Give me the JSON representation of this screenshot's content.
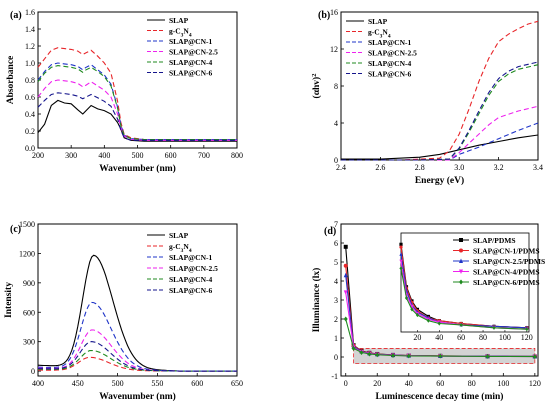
{
  "chart_data": [
    {
      "panel": "(a)",
      "type": "line",
      "xlabel": "Wavenumber (nm)",
      "ylabel": "Absorbance",
      "xlim": [
        200,
        800
      ],
      "ylim": [
        0,
        1.6
      ],
      "xticks": [
        "200",
        "300",
        "400",
        "500",
        "600",
        "700",
        "800"
      ],
      "yticks": [
        "0.0",
        "0.2",
        "0.4",
        "0.6",
        "0.8",
        "1.0",
        "1.2",
        "1.4",
        "1.6"
      ],
      "legend_position": "top-right",
      "series": [
        {
          "name": "SLAP",
          "color": "#000000",
          "style": "solid",
          "x": [
            200,
            220,
            240,
            260,
            280,
            300,
            320,
            335,
            345,
            360,
            380,
            400,
            420,
            440,
            450,
            460,
            480,
            520,
            600,
            700,
            800
          ],
          "y": [
            0.18,
            0.28,
            0.5,
            0.56,
            0.53,
            0.52,
            0.45,
            0.4,
            0.44,
            0.5,
            0.46,
            0.44,
            0.4,
            0.3,
            0.22,
            0.12,
            0.09,
            0.08,
            0.08,
            0.08,
            0.08
          ]
        },
        {
          "name": "g-C3N4",
          "color": "#e8262a",
          "style": "dashed",
          "x": [
            200,
            220,
            240,
            260,
            280,
            300,
            320,
            335,
            345,
            360,
            380,
            400,
            420,
            440,
            450,
            460,
            480,
            520,
            600,
            700,
            800
          ],
          "y": [
            0.95,
            1.05,
            1.15,
            1.18,
            1.17,
            1.16,
            1.14,
            1.1,
            1.12,
            1.15,
            1.08,
            1.0,
            0.88,
            0.55,
            0.3,
            0.16,
            0.12,
            0.1,
            0.1,
            0.1,
            0.1
          ]
        },
        {
          "name": "SLAP@CN-1",
          "color": "#1f34c8",
          "style": "dashed",
          "x": [
            200,
            220,
            240,
            260,
            280,
            300,
            320,
            335,
            345,
            360,
            380,
            400,
            420,
            440,
            450,
            460,
            480,
            520,
            600,
            700,
            800
          ],
          "y": [
            0.8,
            0.9,
            0.98,
            1.0,
            0.99,
            0.98,
            0.96,
            0.92,
            0.95,
            0.98,
            0.92,
            0.86,
            0.75,
            0.48,
            0.27,
            0.15,
            0.11,
            0.1,
            0.1,
            0.1,
            0.1
          ]
        },
        {
          "name": "SLAP@CN-2.5",
          "color": "#ee22ee",
          "style": "dashed",
          "x": [
            200,
            220,
            240,
            260,
            280,
            300,
            320,
            335,
            345,
            360,
            380,
            400,
            420,
            440,
            450,
            460,
            480,
            520,
            600,
            700,
            800
          ],
          "y": [
            0.6,
            0.7,
            0.78,
            0.8,
            0.79,
            0.78,
            0.76,
            0.72,
            0.74,
            0.78,
            0.73,
            0.68,
            0.6,
            0.4,
            0.24,
            0.14,
            0.1,
            0.09,
            0.09,
            0.09,
            0.09
          ]
        },
        {
          "name": "SLAP@CN-4",
          "color": "#1f8a1f",
          "style": "dashed",
          "x": [
            200,
            220,
            240,
            260,
            280,
            300,
            320,
            335,
            345,
            360,
            380,
            400,
            420,
            440,
            450,
            460,
            480,
            520,
            600,
            700,
            800
          ],
          "y": [
            0.78,
            0.88,
            0.95,
            0.97,
            0.96,
            0.95,
            0.93,
            0.89,
            0.92,
            0.95,
            0.9,
            0.84,
            0.73,
            0.47,
            0.26,
            0.15,
            0.11,
            0.1,
            0.1,
            0.1,
            0.1
          ]
        },
        {
          "name": "SLAP@CN-6",
          "color": "#15158c",
          "style": "dashed",
          "x": [
            200,
            220,
            240,
            260,
            280,
            300,
            320,
            335,
            345,
            360,
            380,
            400,
            420,
            440,
            450,
            460,
            480,
            520,
            600,
            700,
            800
          ],
          "y": [
            0.48,
            0.56,
            0.63,
            0.65,
            0.64,
            0.63,
            0.61,
            0.58,
            0.6,
            0.63,
            0.59,
            0.55,
            0.49,
            0.34,
            0.21,
            0.12,
            0.09,
            0.09,
            0.09,
            0.09,
            0.09
          ]
        }
      ]
    },
    {
      "panel": "(b)",
      "type": "line",
      "xlabel": "Energy (eV)",
      "ylabel": "(αhv)²",
      "xlim": [
        2.4,
        3.4
      ],
      "ylim": [
        0,
        16
      ],
      "xticks": [
        "2.4",
        "2.6",
        "2.8",
        "3.0",
        "3.2",
        "3.4"
      ],
      "yticks": [
        "0",
        "4",
        "8",
        "12",
        "16"
      ],
      "legend_position": "top-left",
      "series": [
        {
          "name": "SLAP",
          "color": "#000000",
          "style": "solid",
          "x": [
            2.4,
            2.6,
            2.8,
            2.9,
            3.0,
            3.1,
            3.2,
            3.3,
            3.4
          ],
          "y": [
            0.1,
            0.1,
            0.3,
            0.6,
            1.1,
            1.6,
            2.0,
            2.4,
            2.7
          ]
        },
        {
          "name": "g-C3N4",
          "color": "#e8262a",
          "style": "dashed",
          "x": [
            2.4,
            2.7,
            2.9,
            2.95,
            3.0,
            3.05,
            3.1,
            3.15,
            3.2,
            3.25,
            3.3,
            3.35,
            3.4
          ],
          "y": [
            0.0,
            0.0,
            0.2,
            1.0,
            2.8,
            5.5,
            8.5,
            11.0,
            12.8,
            13.6,
            14.2,
            14.7,
            15.0
          ]
        },
        {
          "name": "SLAP@CN-1",
          "color": "#1f34c8",
          "style": "dashed",
          "x": [
            2.4,
            2.8,
            2.95,
            3.0,
            3.1,
            3.2,
            3.3,
            3.4
          ],
          "y": [
            0.0,
            0.0,
            0.0,
            0.6,
            1.4,
            2.3,
            3.2,
            4.0
          ]
        },
        {
          "name": "SLAP@CN-2.5",
          "color": "#ee22ee",
          "style": "dashed",
          "x": [
            2.4,
            2.8,
            2.95,
            3.0,
            3.05,
            3.1,
            3.15,
            3.2,
            3.3,
            3.4
          ],
          "y": [
            0.0,
            0.0,
            0.0,
            0.8,
            1.8,
            2.8,
            3.8,
            4.6,
            5.3,
            5.8
          ]
        },
        {
          "name": "SLAP@CN-4",
          "color": "#1f8a1f",
          "style": "dashed",
          "x": [
            2.4,
            2.8,
            2.95,
            3.0,
            3.05,
            3.1,
            3.15,
            3.2,
            3.25,
            3.3,
            3.4
          ],
          "y": [
            0.0,
            0.0,
            0.1,
            1.2,
            3.0,
            5.0,
            7.0,
            8.5,
            9.3,
            9.8,
            10.3
          ]
        },
        {
          "name": "SLAP@CN-6",
          "color": "#15158c",
          "style": "dashed",
          "x": [
            2.4,
            2.8,
            2.95,
            3.0,
            3.05,
            3.1,
            3.15,
            3.2,
            3.25,
            3.3,
            3.4
          ],
          "y": [
            0.0,
            0.0,
            0.1,
            1.3,
            3.2,
            5.3,
            7.3,
            8.8,
            9.6,
            10.1,
            10.6
          ]
        }
      ]
    },
    {
      "panel": "(c)",
      "type": "line",
      "xlabel": "Wavenumber (nm)",
      "ylabel": "Intensity",
      "xlim": [
        400,
        650
      ],
      "ylim": [
        -50,
        1500
      ],
      "xticks": [
        "400",
        "450",
        "500",
        "550",
        "600",
        "650"
      ],
      "yticks": [
        "0",
        "300",
        "600",
        "900",
        "1200",
        "1500"
      ],
      "legend_position": "top-right",
      "series": [
        {
          "name": "SLAP",
          "color": "#000000",
          "style": "solid",
          "peak_x": 470,
          "peak_y": 1180,
          "base": 60
        },
        {
          "name": "g-C3N4",
          "color": "#e8262a",
          "style": "dashed",
          "peak_x": 465,
          "peak_y": 140,
          "base": 10
        },
        {
          "name": "SLAP@CN-1",
          "color": "#1f34c8",
          "style": "dashed",
          "peak_x": 468,
          "peak_y": 700,
          "base": 40
        },
        {
          "name": "SLAP@CN-2.5",
          "color": "#ee22ee",
          "style": "dashed",
          "peak_x": 468,
          "peak_y": 420,
          "base": 30
        },
        {
          "name": "SLAP@CN-4",
          "color": "#1f8a1f",
          "style": "dashed",
          "peak_x": 467,
          "peak_y": 210,
          "base": 20
        },
        {
          "name": "SLAP@CN-6",
          "color": "#15158c",
          "style": "dashed",
          "peak_x": 467,
          "peak_y": 300,
          "base": 25
        }
      ]
    },
    {
      "panel": "(d)",
      "type": "line",
      "xlabel": "Luminescence decay time (min)",
      "ylabel": "Illuminance (lx)",
      "xlim": [
        -3,
        122
      ],
      "ylim": [
        -1,
        7
      ],
      "xticks": [
        "0",
        "20",
        "40",
        "60",
        "80",
        "100",
        "120"
      ],
      "yticks": [
        "-1",
        "0",
        "1",
        "2",
        "3",
        "4",
        "5",
        "6",
        "7"
      ],
      "legend_position": "top-right",
      "x": [
        0,
        5,
        10,
        15,
        20,
        30,
        40,
        60,
        90,
        120
      ],
      "series": [
        {
          "name": "SLAP/PDMS",
          "color": "#000000",
          "marker": "square",
          "y": [
            5.8,
            0.62,
            0.32,
            0.22,
            0.16,
            0.11,
            0.08,
            0.06,
            0.04,
            0.03
          ]
        },
        {
          "name": "SLAP@CN-1/PDMS",
          "color": "#e8262a",
          "marker": "circle",
          "y": [
            4.8,
            0.6,
            0.31,
            0.21,
            0.15,
            0.1,
            0.08,
            0.06,
            0.04,
            0.03
          ]
        },
        {
          "name": "SLAP@CN-2.5/PDMS",
          "color": "#1f34c8",
          "marker": "triangle",
          "y": [
            4.3,
            0.55,
            0.29,
            0.19,
            0.14,
            0.1,
            0.07,
            0.05,
            0.04,
            0.03
          ]
        },
        {
          "name": "SLAP@CN-4/PDMS",
          "color": "#ee22ee",
          "marker": "triangle-down",
          "y": [
            3.4,
            0.5,
            0.26,
            0.18,
            0.13,
            0.09,
            0.07,
            0.05,
            0.03,
            0.02
          ]
        },
        {
          "name": "SLAP@CN-6/PDMS",
          "color": "#1f8a1f",
          "marker": "diamond",
          "y": [
            2.0,
            0.45,
            0.24,
            0.16,
            0.12,
            0.08,
            0.06,
            0.05,
            0.03,
            0.02
          ]
        }
      ],
      "inset": {
        "xlim": [
          5,
          122
        ],
        "ylim": [
          0,
          0.7
        ],
        "xticks": [
          "20",
          "40",
          "60",
          "80",
          "100",
          "120"
        ],
        "highlight_region": {
          "x": [
            5,
            120
          ],
          "y": [
            -0.35,
            0.45
          ]
        }
      }
    }
  ]
}
